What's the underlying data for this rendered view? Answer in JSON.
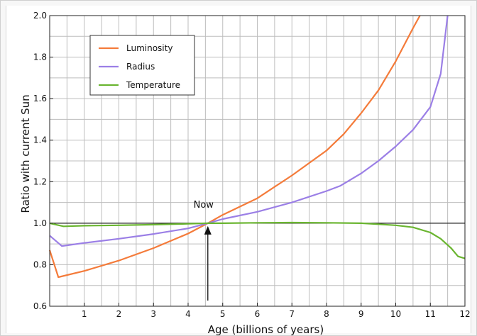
{
  "chart_data": {
    "type": "line",
    "xlabel": "Age (billions of years)",
    "ylabel": "Ratio with current Sun",
    "xlim": [
      0,
      12
    ],
    "ylim": [
      0.6,
      2.0
    ],
    "x_ticks": [
      1,
      2,
      3,
      4,
      5,
      6,
      7,
      8,
      9,
      10,
      11,
      12
    ],
    "y_ticks": [
      0.6,
      0.8,
      1.0,
      1.2,
      1.4,
      1.6,
      1.8,
      2.0
    ],
    "grid": true,
    "legend_position": "top-left",
    "reference_line": 1.0,
    "annotation": {
      "text": "Now",
      "x": 4.57,
      "y": 1.0
    },
    "series": [
      {
        "name": "Luminosity",
        "color": "#f47b3a",
        "points": [
          [
            0,
            0.87
          ],
          [
            0.25,
            0.74
          ],
          [
            1,
            0.77
          ],
          [
            2,
            0.82
          ],
          [
            3,
            0.88
          ],
          [
            4,
            0.95
          ],
          [
            4.57,
            1.0
          ],
          [
            5,
            1.04
          ],
          [
            6,
            1.12
          ],
          [
            7,
            1.23
          ],
          [
            8,
            1.35
          ],
          [
            8.5,
            1.43
          ],
          [
            9,
            1.53
          ],
          [
            9.5,
            1.64
          ],
          [
            10,
            1.78
          ],
          [
            10.5,
            1.94
          ],
          [
            10.7,
            2.0
          ]
        ]
      },
      {
        "name": "Radius",
        "color": "#9b7fe6",
        "points": [
          [
            0,
            0.94
          ],
          [
            0.35,
            0.89
          ],
          [
            1,
            0.905
          ],
          [
            2,
            0.925
          ],
          [
            3,
            0.948
          ],
          [
            4,
            0.975
          ],
          [
            4.57,
            1.0
          ],
          [
            5,
            1.02
          ],
          [
            6,
            1.055
          ],
          [
            7,
            1.1
          ],
          [
            8,
            1.155
          ],
          [
            8.4,
            1.18
          ],
          [
            9,
            1.24
          ],
          [
            9.5,
            1.3
          ],
          [
            10,
            1.37
          ],
          [
            10.5,
            1.45
          ],
          [
            11,
            1.56
          ],
          [
            11.3,
            1.72
          ],
          [
            11.5,
            2.0
          ]
        ]
      },
      {
        "name": "Temperature",
        "color": "#6ab530",
        "points": [
          [
            0,
            1.0
          ],
          [
            0.4,
            0.985
          ],
          [
            1,
            0.988
          ],
          [
            2,
            0.99
          ],
          [
            3,
            0.993
          ],
          [
            4,
            0.997
          ],
          [
            4.57,
            1.0
          ],
          [
            5,
            1.0
          ],
          [
            6,
            1.002
          ],
          [
            7,
            1.003
          ],
          [
            8,
            1.002
          ],
          [
            9,
            1.0
          ],
          [
            9.5,
            0.995
          ],
          [
            10,
            0.99
          ],
          [
            10.5,
            0.98
          ],
          [
            11,
            0.955
          ],
          [
            11.3,
            0.925
          ],
          [
            11.6,
            0.88
          ],
          [
            11.8,
            0.84
          ],
          [
            12,
            0.83
          ]
        ]
      }
    ]
  }
}
